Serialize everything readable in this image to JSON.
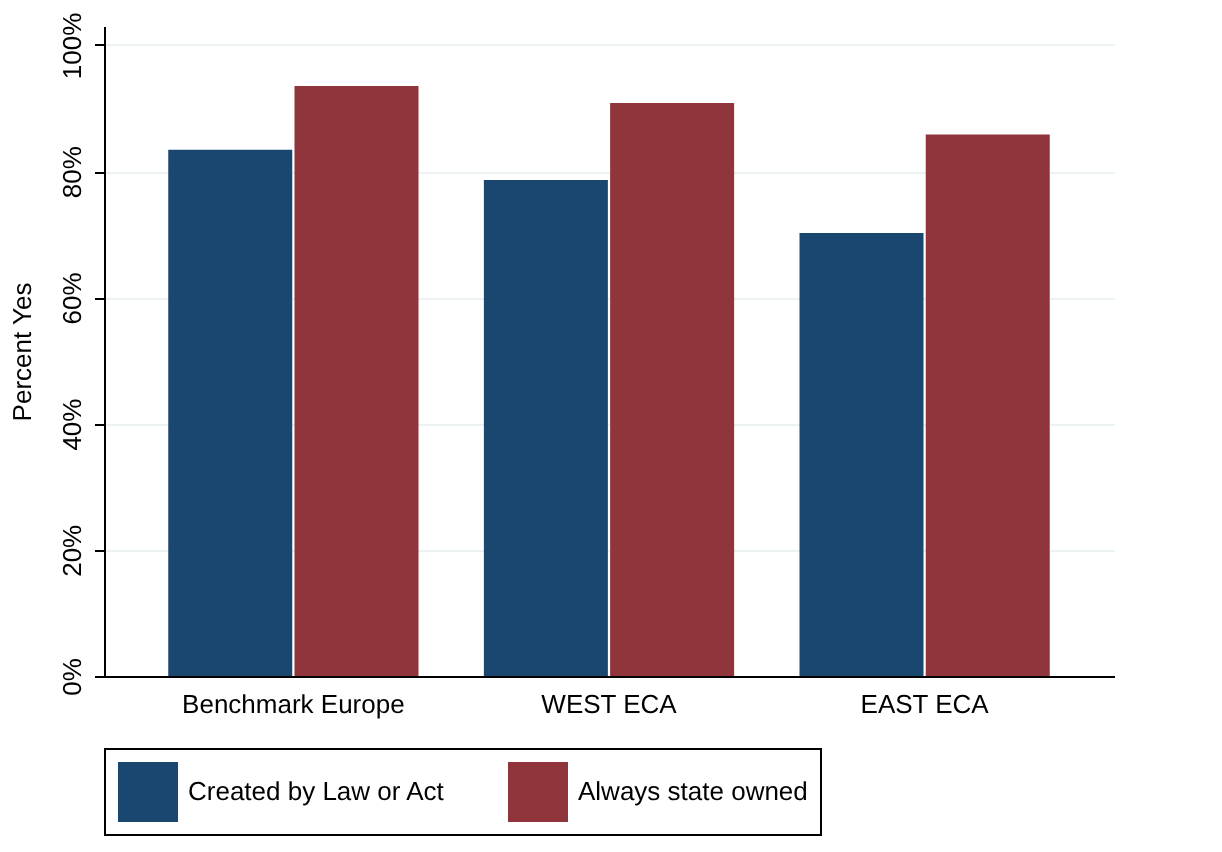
{
  "chart_data": {
    "type": "bar",
    "ylabel": "Percent Yes",
    "categories": [
      "Benchmark Europe",
      "WEST ECA",
      "EAST ECA"
    ],
    "series": [
      {
        "name": "Created by Law or Act",
        "color": "#1a476f",
        "values": [
          83.4,
          78.6,
          70.2
        ]
      },
      {
        "name": "Always state owned",
        "color": "#90353b",
        "values": [
          93.5,
          90.8,
          85.8
        ]
      }
    ],
    "ylim": [
      0,
      103
    ],
    "yticks": [
      {
        "value": 0,
        "label": "0%"
      },
      {
        "value": 20,
        "label": "20%"
      },
      {
        "value": 40,
        "label": "40%"
      },
      {
        "value": 60,
        "label": "60%"
      },
      {
        "value": 80,
        "label": "80%"
      },
      {
        "value": 100,
        "label": "100%"
      }
    ],
    "grid": "y",
    "legend": "bottom"
  }
}
